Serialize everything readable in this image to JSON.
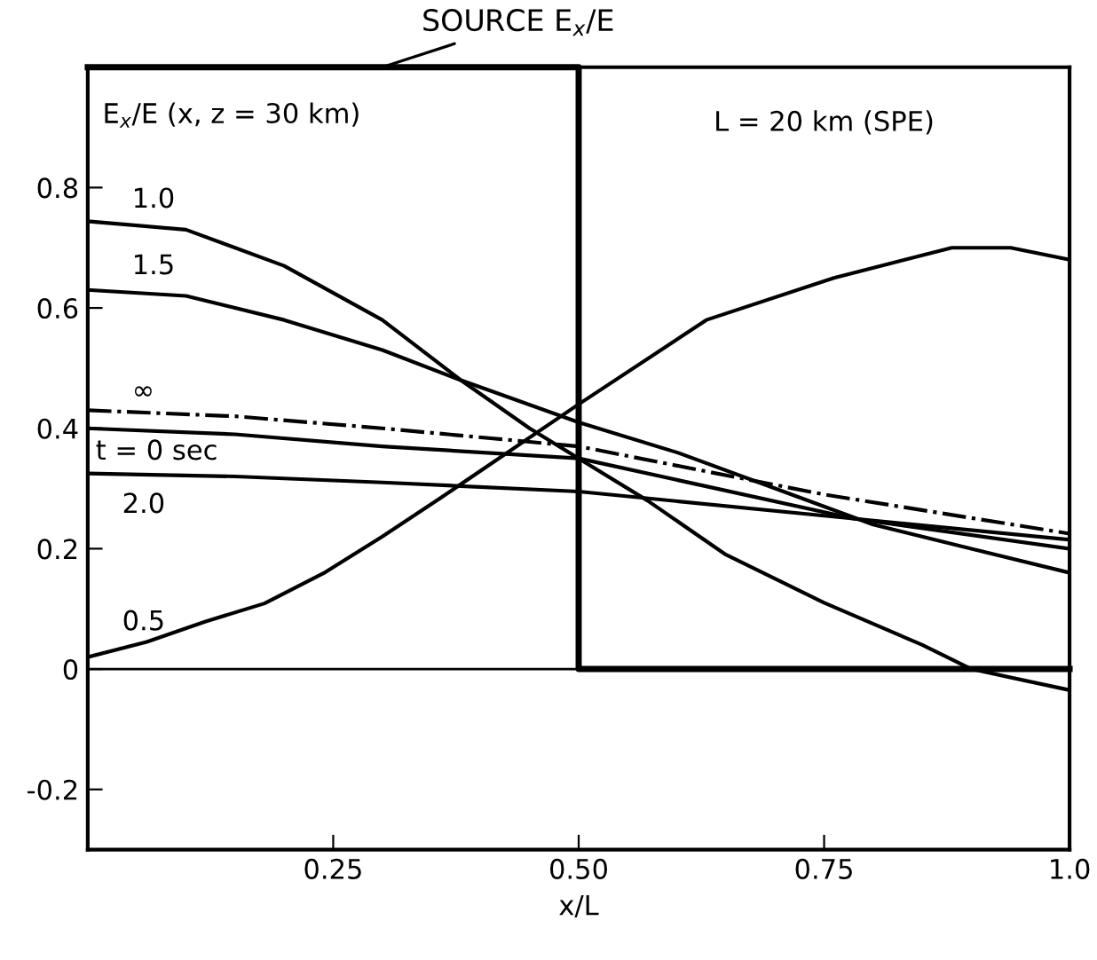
{
  "chart_data": {
    "type": "line",
    "xlabel": "x/L",
    "xlim": [
      0,
      1.0
    ],
    "ylim": [
      -0.3,
      1.0
    ],
    "xticks": [
      0.25,
      {
        "value": 0.5,
        "label": "0.50"
      },
      0.75,
      {
        "value": 1.0,
        "label": "1.0"
      }
    ],
    "yticks": [
      -0.2,
      0,
      0.2,
      0.4,
      0.6,
      0.8
    ],
    "grid": false,
    "marker": "none",
    "ref_lines": [
      {
        "axis": "y",
        "value": 0,
        "color": "#000000",
        "line_style": "solid"
      }
    ],
    "series": [
      {
        "type": "step",
        "color": "#000000",
        "x": [
          0,
          0.5,
          1.0
        ],
        "values": [
          1.0,
          0.0,
          0.0
        ]
      },
      {
        "color": "#000000",
        "x": [
          0,
          0.1,
          0.2,
          0.3,
          0.38,
          0.45,
          0.5,
          0.57,
          0.65,
          0.75,
          0.85,
          0.9,
          1.0
        ],
        "values": [
          0.744,
          0.73,
          0.67,
          0.58,
          0.48,
          0.4,
          0.35,
          0.28,
          0.19,
          0.11,
          0.04,
          0.0,
          -0.035
        ]
      },
      {
        "color": "#000000",
        "x": [
          0,
          0.1,
          0.2,
          0.3,
          0.38,
          0.5,
          0.6,
          0.7,
          0.8,
          0.9,
          1.0
        ],
        "values": [
          0.63,
          0.62,
          0.58,
          0.53,
          0.48,
          0.41,
          0.36,
          0.3,
          0.24,
          0.2,
          0.16
        ]
      },
      {
        "color": "#000000",
        "line_style": "dashdot",
        "x": [
          0,
          0.15,
          0.3,
          0.5,
          0.75,
          1.0
        ],
        "values": [
          0.43,
          0.42,
          0.4,
          0.37,
          0.29,
          0.225
        ]
      },
      {
        "color": "#000000",
        "x": [
          0,
          0.15,
          0.3,
          0.5,
          0.78,
          1.0
        ],
        "values": [
          0.4,
          0.39,
          0.37,
          0.35,
          0.25,
          0.2
        ]
      },
      {
        "color": "#000000",
        "x": [
          0,
          0.15,
          0.3,
          0.5,
          0.78,
          1.0
        ],
        "values": [
          0.325,
          0.32,
          0.31,
          0.295,
          0.25,
          0.215
        ]
      },
      {
        "color": "#000000",
        "x": [
          0,
          0.06,
          0.12,
          0.18,
          0.24,
          0.3,
          0.36,
          0.5,
          0.63,
          0.76,
          0.88,
          0.94,
          1.0
        ],
        "values": [
          0.02,
          0.045,
          0.079,
          0.109,
          0.159,
          0.22,
          0.285,
          0.44,
          0.58,
          0.65,
          0.7,
          0.7,
          0.68
        ]
      }
    ],
    "annotations": [
      {
        "text": "SOURCE E$_{x}$/E",
        "x": 0.3,
        "y": 1.0
      },
      "E$_{x}$/E (x, z = 30 km)",
      "L = 20 km (SPE)",
      "1.0",
      "1.5",
      "∞",
      "t = 0 sec",
      "2.0",
      "0.5"
    ]
  }
}
